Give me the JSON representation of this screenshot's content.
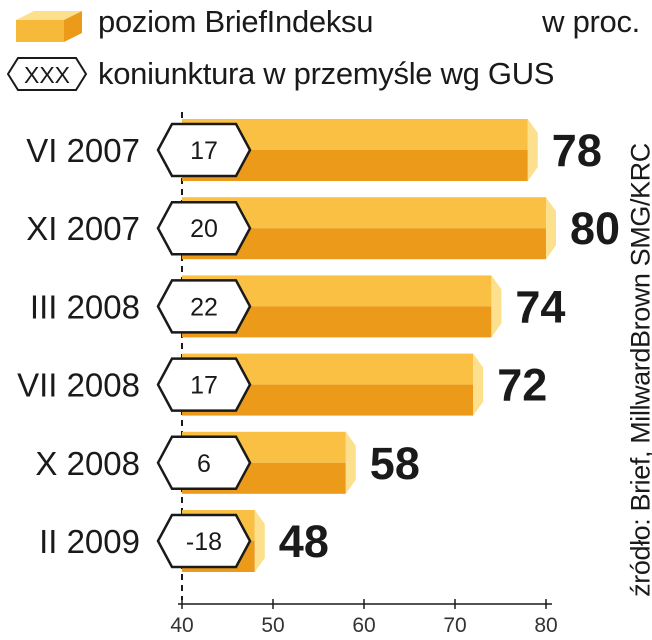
{
  "legend": {
    "index_label": "poziom BriefIndeksu",
    "gus_symbol": "XXX",
    "gus_label": "koniunktura w przemyśle wg GUS"
  },
  "unit": "w proc.",
  "source": "źródło: Brief, MillwardBrown SMG/KRC",
  "colors": {
    "bar_light": "#f9c043",
    "bar_dark": "#eb9a1a",
    "bar_end": "#fde08e",
    "badge_fill": "#ffffff",
    "badge_stroke": "#1a1a1a",
    "text": "#1a1a1a"
  },
  "chart_data": {
    "type": "bar",
    "orientation": "horizontal",
    "categories": [
      "VI 2007",
      "XI 2007",
      "III 2008",
      "VII 2008",
      "X 2008",
      "II 2009"
    ],
    "series": [
      {
        "name": "poziom BriefIndeksu",
        "values": [
          78,
          80,
          74,
          72,
          58,
          48
        ]
      },
      {
        "name": "koniunktura w przemyśle wg GUS",
        "values": [
          17,
          20,
          22,
          17,
          6,
          -18
        ]
      }
    ],
    "xlim": [
      40,
      80
    ],
    "xticks": [
      40,
      50,
      60,
      70,
      80
    ],
    "grid": false,
    "legend_position": "top-left"
  }
}
